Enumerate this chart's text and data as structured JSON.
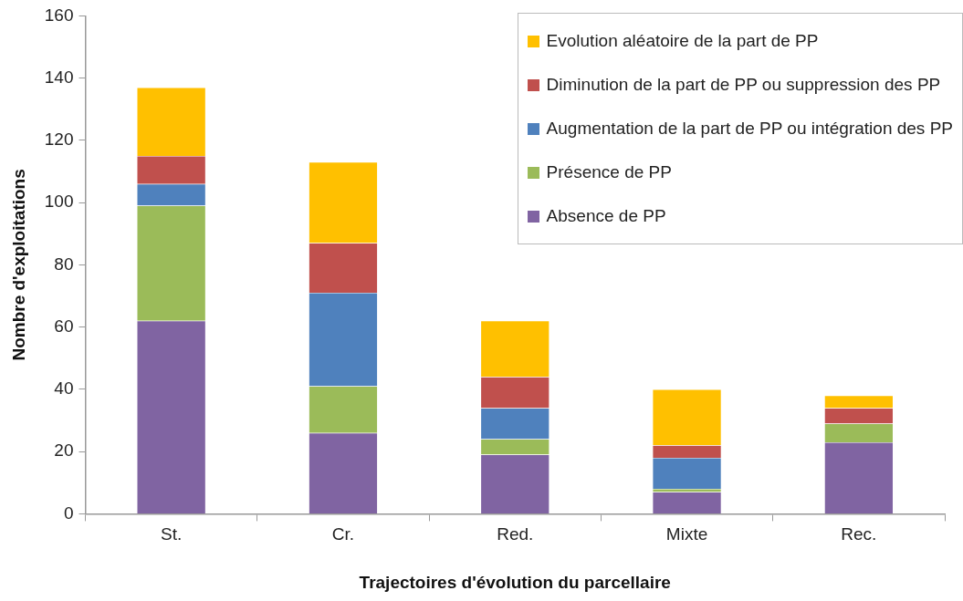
{
  "chart_data": {
    "type": "bar",
    "stacked": true,
    "xlabel": "Trajectoires d'évolution du parcellaire",
    "ylabel": "Nombre d'exploitations",
    "categories": [
      "St.",
      "Cr.",
      "Red.",
      "Mixte",
      "Rec."
    ],
    "series": [
      {
        "name": "Absence de PP",
        "color": "#8064a2",
        "values": [
          62,
          26,
          19,
          7,
          23
        ]
      },
      {
        "name": "Présence de PP",
        "color": "#9bbb59",
        "values": [
          37,
          15,
          5,
          1,
          6
        ]
      },
      {
        "name": "Augmentation de la part de PP ou intégration des PP",
        "color": "#4f81bd",
        "values": [
          7,
          30,
          10,
          10,
          0
        ]
      },
      {
        "name": "Diminution de la part de PP ou suppression des PP",
        "color": "#c0504d",
        "values": [
          9,
          16,
          10,
          4,
          5
        ]
      },
      {
        "name": "Evolution aléatoire de la part de PP",
        "color": "#ffc000",
        "values": [
          22,
          26,
          18,
          18,
          4
        ]
      }
    ],
    "ylim": [
      0,
      160
    ],
    "yticks": [
      0,
      20,
      40,
      60,
      80,
      100,
      120,
      140,
      160
    ],
    "grid": false,
    "legend": "top right"
  }
}
